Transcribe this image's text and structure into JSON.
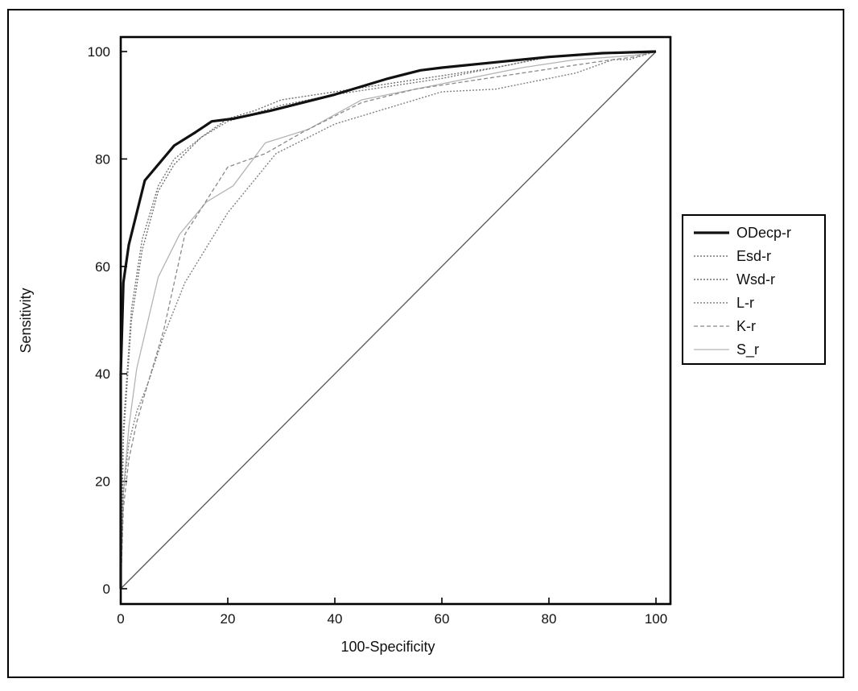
{
  "chart_data": {
    "type": "line",
    "title": "",
    "xlabel": "100-Specificity",
    "ylabel": "Sensitivity",
    "xlim": [
      0,
      100
    ],
    "ylim": [
      0,
      100
    ],
    "xticks": [
      0,
      20,
      40,
      60,
      80,
      100
    ],
    "yticks": [
      0,
      20,
      40,
      60,
      80,
      100
    ],
    "grid": false,
    "legend_position": "right",
    "reference_line": {
      "x": [
        0,
        100
      ],
      "y": [
        0,
        100
      ],
      "color": "#555555"
    },
    "series": [
      {
        "name": "ODecp-r",
        "color": "#111111",
        "style": "solid",
        "width": 3.2,
        "x": [
          0,
          0,
          0.5,
          1.5,
          4.5,
          10,
          14,
          17,
          21,
          28,
          40,
          50,
          56,
          60,
          70,
          80,
          90,
          100
        ],
        "y": [
          0,
          40,
          57,
          64,
          76,
          82.5,
          85,
          87,
          87.5,
          89,
          92,
          95,
          96.5,
          97,
          98,
          99,
          99.7,
          100
        ]
      },
      {
        "name": "Esd-r",
        "color": "#777777",
        "style": "dotted",
        "width": 1.4,
        "x": [
          0,
          0.5,
          2,
          4,
          7,
          10,
          15,
          20,
          25,
          30,
          40,
          50,
          60,
          70,
          80,
          90,
          100
        ],
        "y": [
          0,
          30,
          52,
          65,
          75,
          80,
          84,
          87,
          88.5,
          90,
          92,
          93.5,
          95,
          97,
          99,
          99.8,
          100
        ]
      },
      {
        "name": "Wsd-r",
        "color": "#6e6e6e",
        "style": "dotted",
        "width": 1.4,
        "x": [
          0,
          0.5,
          2,
          4,
          7,
          10,
          15,
          20,
          25,
          30,
          40,
          50,
          60,
          70,
          80,
          90,
          100
        ],
        "y": [
          0,
          28,
          50,
          63,
          74,
          79,
          84,
          87.5,
          89,
          91,
          92.5,
          94,
          95.5,
          97,
          99,
          99.8,
          100
        ]
      },
      {
        "name": "L-r",
        "color": "#808080",
        "style": "dotted",
        "width": 1.4,
        "x": [
          0,
          0.5,
          1.5,
          3,
          5,
          8,
          12,
          20,
          29,
          40,
          50,
          60,
          70,
          80,
          85,
          92,
          95,
          100
        ],
        "y": [
          0,
          18,
          27,
          33,
          38,
          47,
          57,
          70,
          81,
          86.5,
          89.5,
          92.5,
          93,
          95,
          96,
          98.5,
          98.5,
          100
        ]
      },
      {
        "name": "K-r",
        "color": "#8a8a8a",
        "style": "dashed",
        "width": 1.3,
        "x": [
          0,
          0.5,
          1.5,
          3,
          5,
          8,
          12,
          20,
          27,
          34,
          45,
          55,
          65,
          75,
          85,
          92,
          96,
          100
        ],
        "y": [
          0,
          15,
          24,
          31,
          38,
          48,
          66,
          78.5,
          81,
          85,
          90.5,
          93,
          94.5,
          96,
          97.5,
          98.5,
          99,
          100
        ]
      },
      {
        "name": "S_r",
        "color": "#b4b4b4",
        "style": "solid",
        "width": 1.3,
        "x": [
          0,
          0.5,
          1.5,
          3,
          7,
          11,
          16,
          21,
          27,
          35,
          45,
          55,
          65,
          75,
          85,
          92,
          96,
          100
        ],
        "y": [
          0,
          18,
          30,
          41,
          58,
          66,
          72,
          75,
          83,
          85.5,
          91,
          93,
          95,
          97,
          98.5,
          99,
          99.3,
          100
        ]
      }
    ]
  }
}
